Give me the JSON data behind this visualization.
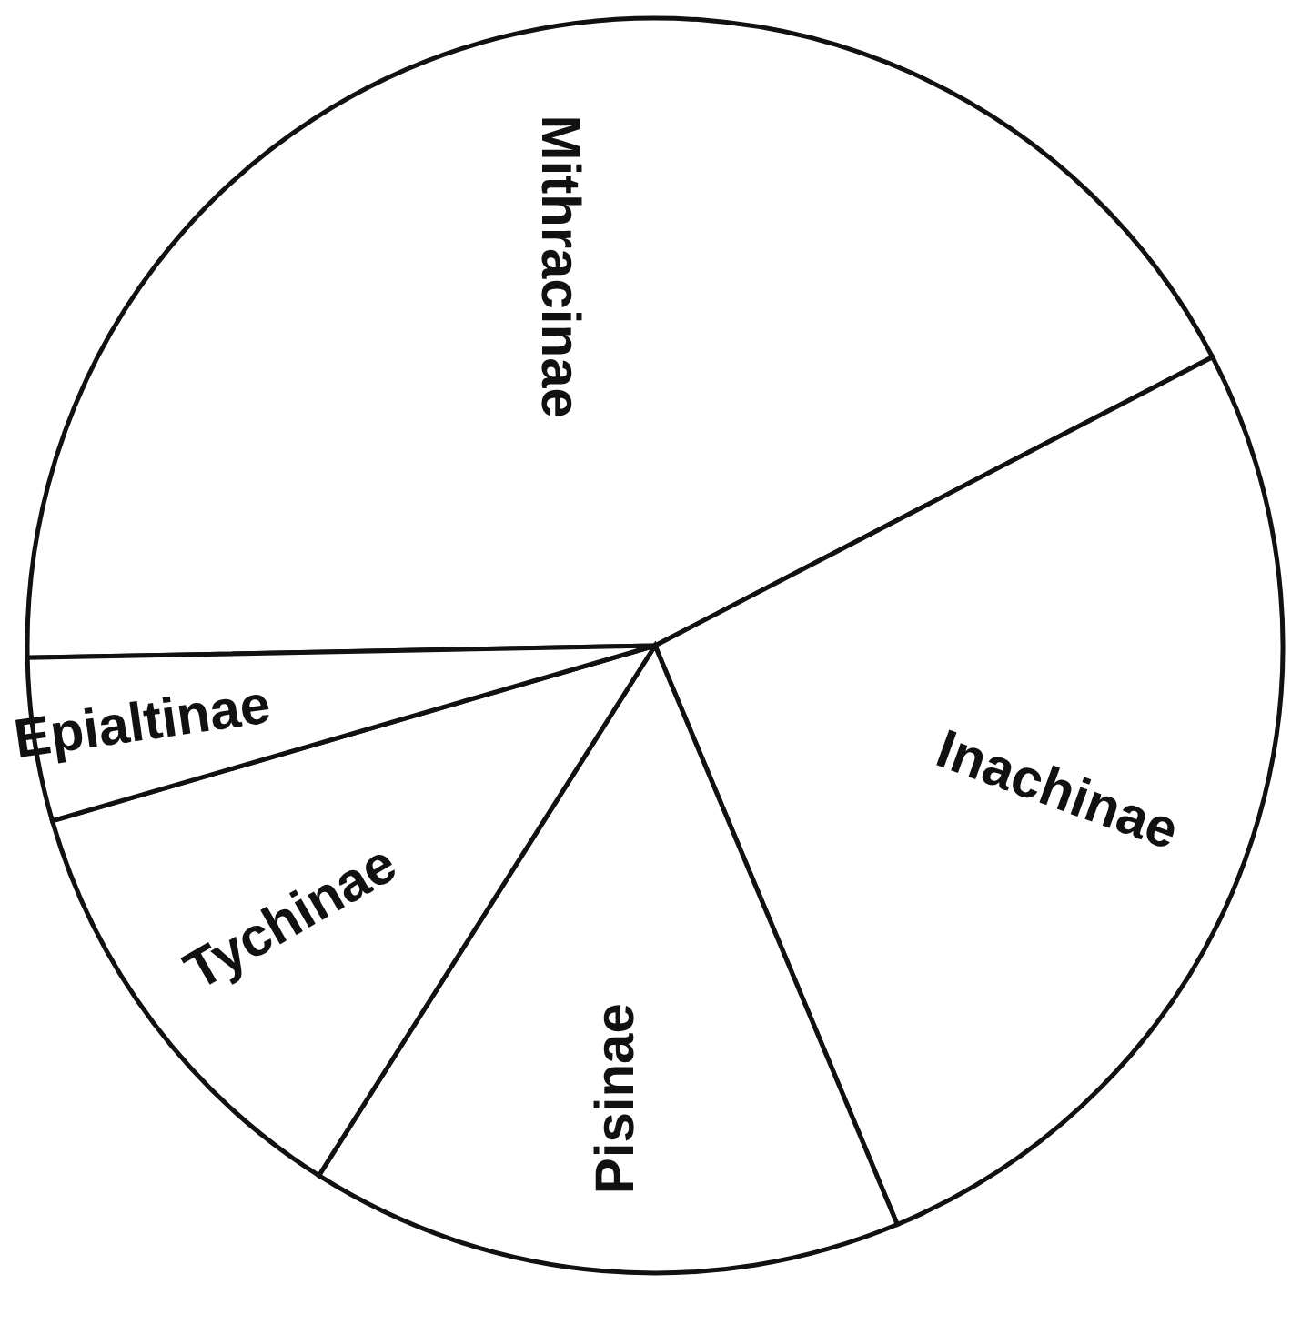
{
  "chart_data": {
    "type": "pie",
    "categories": [
      "Mithracinae",
      "Inachinae",
      "Pisinae",
      "Tychinae",
      "Epialtinae"
    ],
    "values": [
      42.7,
      26.3,
      15.3,
      11.5,
      4.2
    ],
    "colors": [
      "#ffffff",
      "#ffffff",
      "#ffffff",
      "#ffffff",
      "#ffffff"
    ]
  }
}
